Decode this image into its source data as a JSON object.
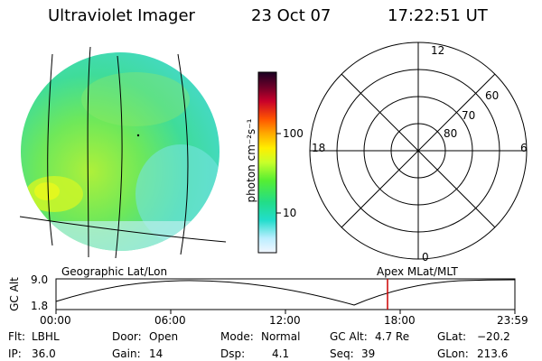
{
  "header": {
    "instrument": "Ultraviolet Imager",
    "date": "23 Oct 07",
    "time": "17:22:51 UT"
  },
  "colorbar": {
    "unit_label": "photon cm⁻²s⁻¹",
    "ticks": [
      "100",
      "10"
    ],
    "colors": [
      "#1a0022",
      "#6a0028",
      "#c8002a",
      "#ff5500",
      "#ffaa00",
      "#ffee00",
      "#c8ff2a",
      "#55ee33",
      "#22dd88",
      "#22ddcc",
      "#bbeeff",
      "#f2f6ff"
    ]
  },
  "polar_plot": {
    "mlt_labels": {
      "top": "12",
      "left": "18",
      "right": "6",
      "bottom": "0"
    },
    "lat_labels": [
      "60",
      "70",
      "80"
    ]
  },
  "timeline": {
    "left_title": "Geographic Lat/Lon",
    "right_title": "Apex MLat/MLT",
    "axis_label": "GC Alt",
    "y_top": "9.0",
    "y_bottom": "1.8",
    "x_ticks": [
      "00:00",
      "06:00",
      "12:00",
      "18:00",
      "23:59"
    ],
    "marker_color": "#cc0000"
  },
  "info": {
    "filter_label": "Flt:",
    "filter_value": "LBHL",
    "ip_label": "IP:",
    "ip_value": "36.0",
    "door_label": "Door:",
    "door_value": "Open",
    "gain_label": "Gain:",
    "gain_value": "14",
    "mode_label": "Mode:",
    "mode_value": "Normal",
    "dsp_label": "Dsp:",
    "dsp_value": "4.1",
    "gcalt_label": "GC Alt:",
    "gcalt_value": "4.7 Re",
    "seq_label": "Seq:",
    "seq_value": "39",
    "glat_label": "GLat:",
    "glat_value": "−20.2",
    "glon_label": "GLon:",
    "glon_value": "213.6"
  }
}
